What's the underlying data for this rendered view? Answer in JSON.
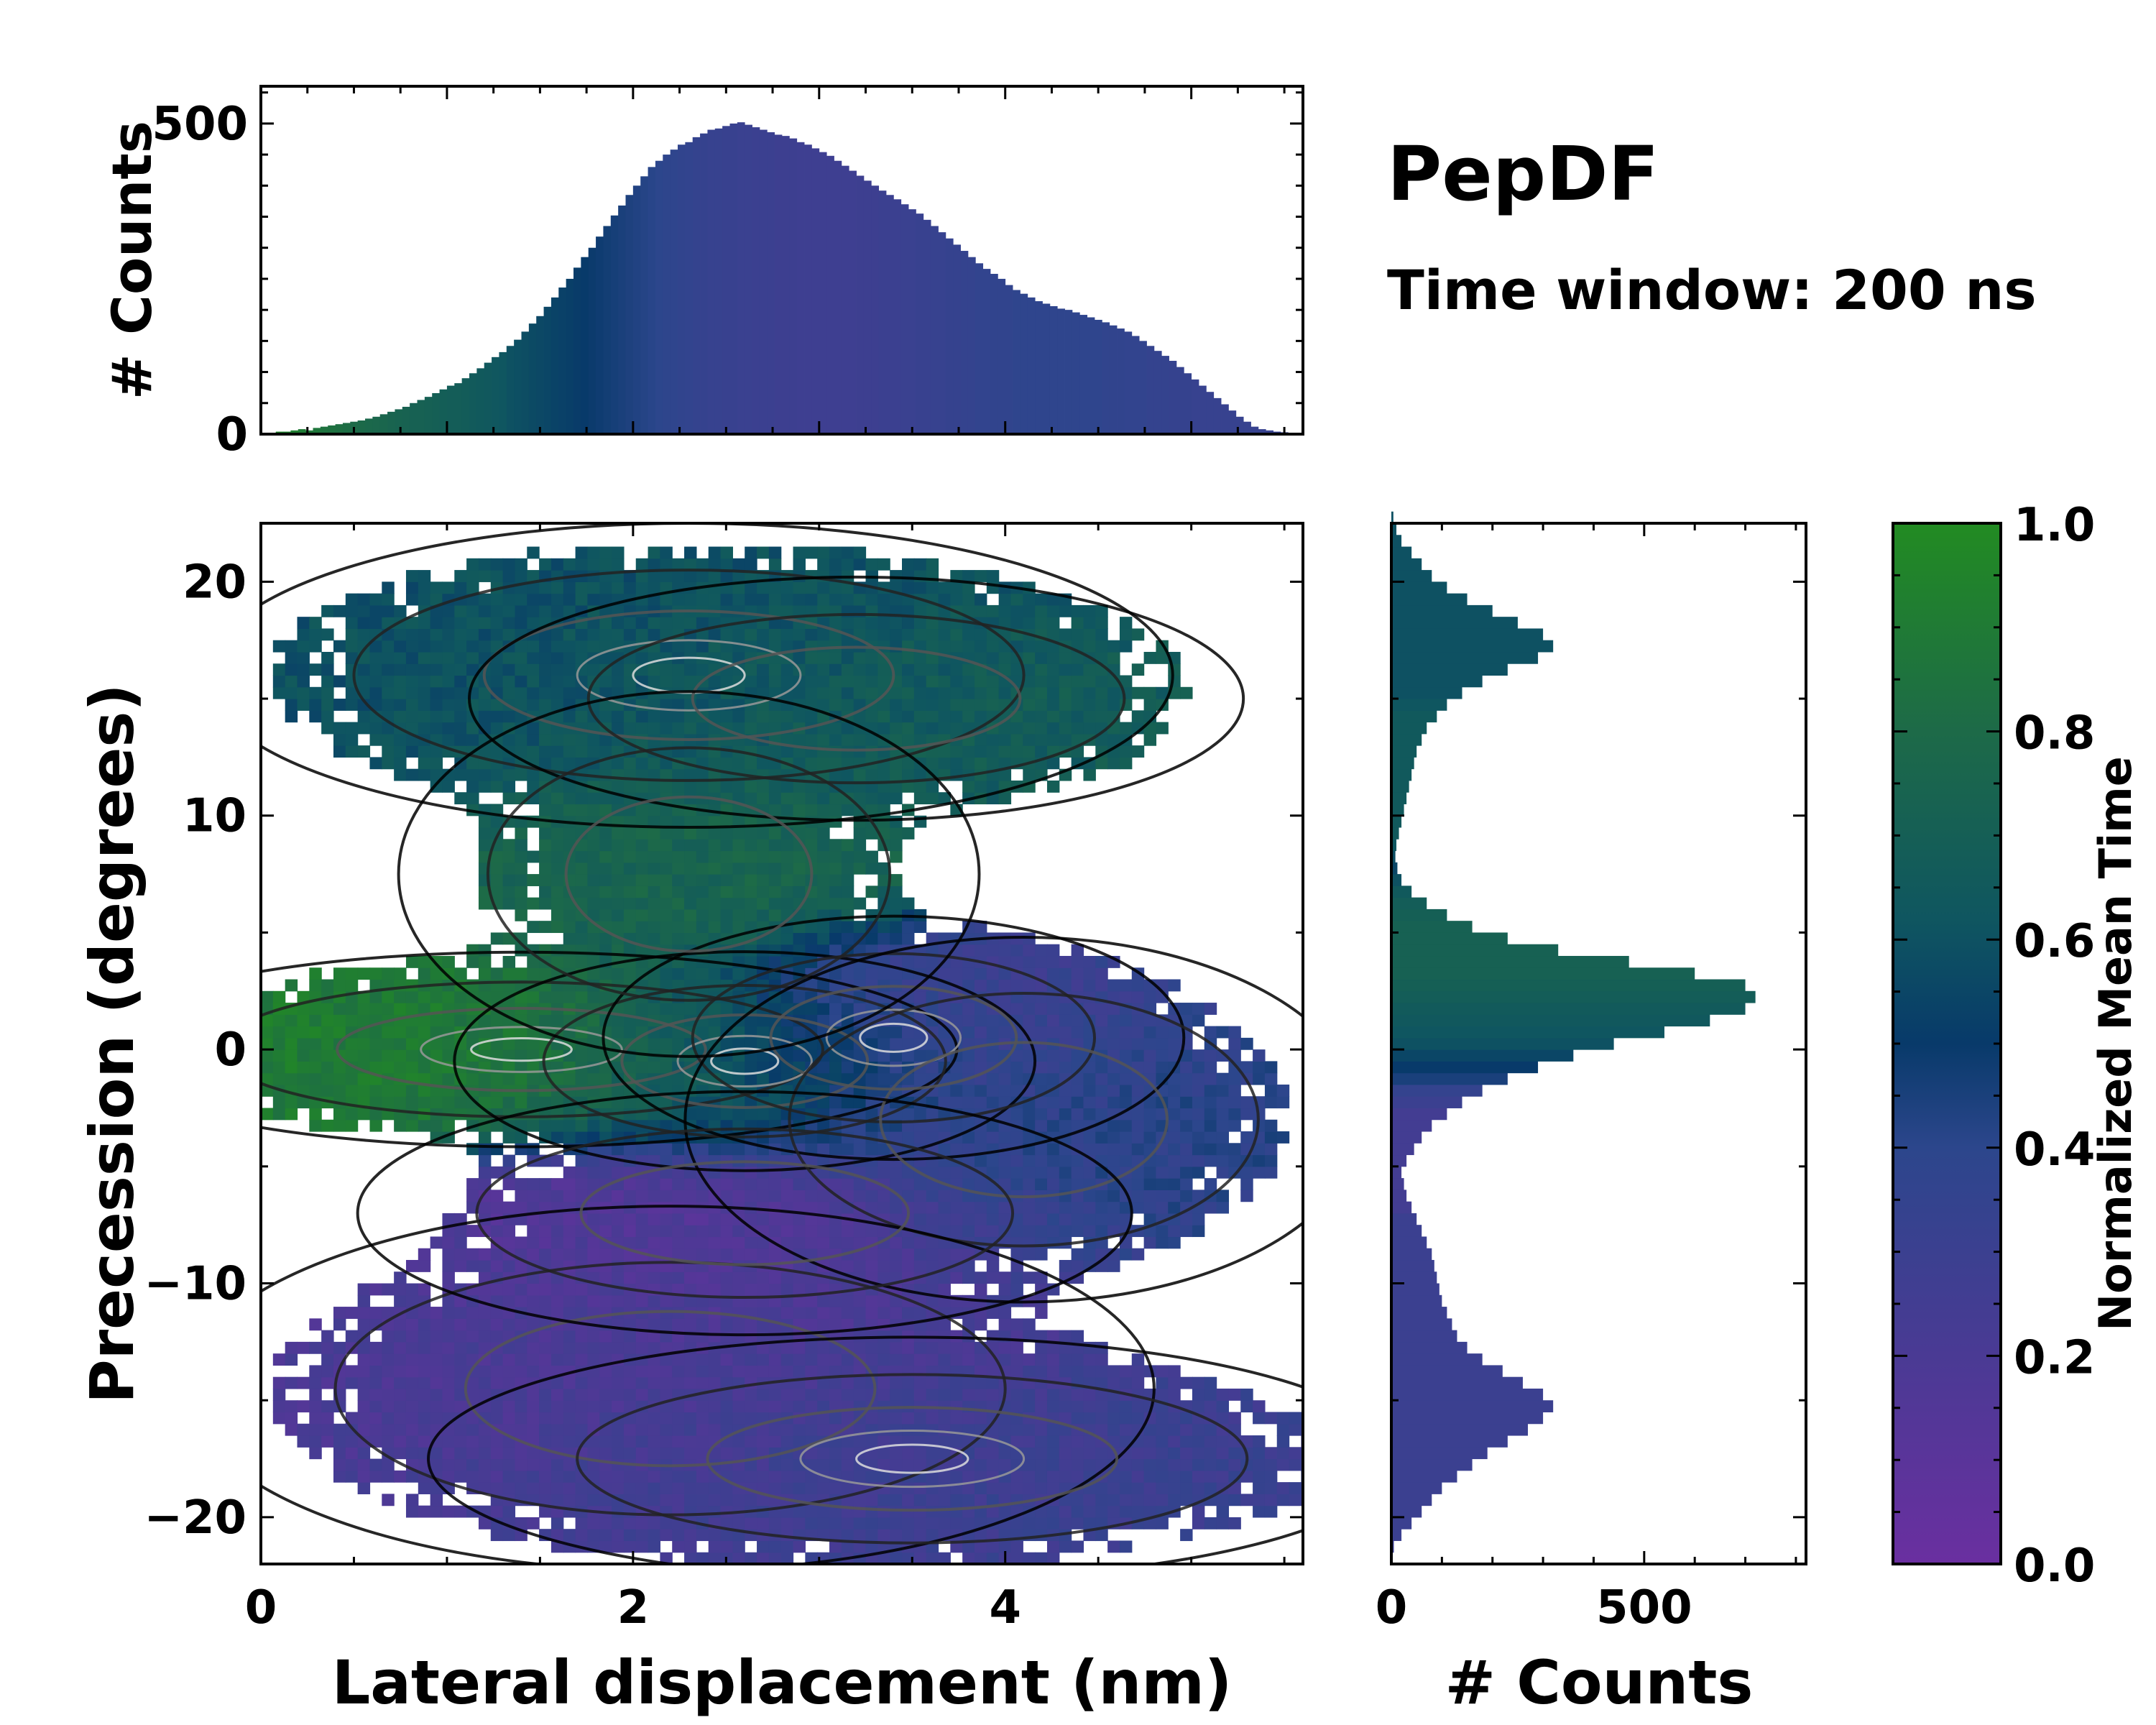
{
  "figure": {
    "title": "PepDF",
    "subtitle": "Time window: 200 ns"
  },
  "chart_data": [
    {
      "type": "bar",
      "name": "top-histogram",
      "xlabel": "",
      "ylabel": "# Counts",
      "xlim": [
        0,
        5.6
      ],
      "ylim": [
        0,
        560
      ],
      "yticks": [
        0,
        500
      ],
      "bin_width": 0.04,
      "values": [
        0,
        2,
        4,
        4,
        6,
        8,
        6,
        10,
        12,
        14,
        16,
        18,
        20,
        22,
        25,
        28,
        32,
        36,
        40,
        44,
        50,
        55,
        60,
        66,
        72,
        78,
        82,
        90,
        98,
        106,
        115,
        124,
        132,
        142,
        152,
        165,
        178,
        190,
        205,
        220,
        236,
        250,
        268,
        285,
        300,
        318,
        335,
        352,
        368,
        385,
        400,
        415,
        430,
        440,
        450,
        458,
        466,
        470,
        478,
        484,
        490,
        492,
        496,
        500,
        502,
        498,
        494,
        490,
        486,
        482,
        480,
        476,
        470,
        466,
        460,
        454,
        448,
        440,
        432,
        424,
        416,
        408,
        400,
        392,
        385,
        378,
        370,
        362,
        355,
        345,
        335,
        325,
        315,
        305,
        295,
        285,
        275,
        266,
        258,
        250,
        240,
        232,
        226,
        220,
        214,
        210,
        206,
        202,
        200,
        196,
        192,
        188,
        184,
        180,
        175,
        170,
        165,
        158,
        150,
        142,
        134,
        126,
        118,
        108,
        98,
        88,
        78,
        68,
        58,
        48,
        38,
        28,
        20,
        12,
        8,
        6,
        4,
        3,
        2,
        1
      ],
      "color_values": [
        0.98,
        0.96,
        0.95,
        0.93,
        0.92,
        0.9,
        0.88,
        0.87,
        0.85,
        0.84,
        0.83,
        0.82,
        0.8,
        0.79,
        0.78,
        0.77,
        0.76,
        0.75,
        0.74,
        0.73,
        0.72,
        0.72,
        0.71,
        0.7,
        0.69,
        0.68,
        0.68,
        0.67,
        0.66,
        0.65,
        0.64,
        0.63,
        0.62,
        0.6,
        0.59,
        0.58,
        0.57,
        0.56,
        0.55,
        0.54,
        0.53,
        0.52,
        0.51,
        0.5,
        0.49,
        0.48,
        0.47,
        0.46,
        0.45,
        0.44,
        0.43,
        0.42,
        0.41,
        0.4,
        0.39,
        0.38,
        0.37,
        0.36,
        0.35,
        0.34,
        0.33,
        0.33,
        0.32,
        0.32,
        0.31,
        0.31,
        0.3,
        0.3,
        0.3,
        0.29,
        0.29,
        0.29,
        0.28,
        0.28,
        0.28,
        0.28,
        0.28,
        0.28,
        0.28,
        0.28,
        0.29,
        0.29,
        0.29,
        0.3,
        0.3,
        0.3,
        0.31,
        0.31,
        0.32,
        0.32,
        0.33,
        0.33,
        0.34,
        0.34,
        0.35,
        0.35,
        0.36,
        0.36,
        0.37,
        0.37,
        0.37,
        0.38,
        0.38,
        0.38,
        0.38,
        0.38,
        0.38,
        0.38,
        0.38,
        0.38,
        0.38,
        0.38,
        0.38,
        0.37,
        0.37,
        0.37,
        0.36,
        0.36,
        0.36,
        0.35,
        0.35,
        0.35,
        0.34,
        0.34,
        0.34,
        0.33,
        0.33,
        0.33,
        0.33,
        0.33,
        0.33,
        0.33,
        0.33,
        0.33,
        0.33,
        0.33,
        0.33,
        0.33,
        0.33,
        0.33
      ]
    },
    {
      "type": "heatmap",
      "name": "main-2d-histogram",
      "xlabel": "Lateral displacement (nm)",
      "ylabel": "Precession (degrees)",
      "xlim": [
        0,
        5.6
      ],
      "ylim": [
        -22,
        22.5
      ],
      "xticks": [
        0,
        2,
        4
      ],
      "yticks": [
        -20,
        -10,
        0,
        10,
        20
      ],
      "contours": true,
      "clusters": [
        {
          "x": 1.4,
          "y": 0.0,
          "sx": 0.9,
          "sy": 1.6,
          "weight": 1.0,
          "time": 0.9
        },
        {
          "x": 2.6,
          "y": -0.5,
          "sx": 0.6,
          "sy": 1.8,
          "weight": 1.4,
          "time": 0.6
        },
        {
          "x": 3.4,
          "y": 0.5,
          "sx": 0.6,
          "sy": 2.0,
          "weight": 0.9,
          "time": 0.25
        },
        {
          "x": 4.1,
          "y": -3.0,
          "sx": 0.7,
          "sy": 3.0,
          "weight": 0.5,
          "time": 0.4
        },
        {
          "x": 2.3,
          "y": 16.0,
          "sx": 1.0,
          "sy": 2.5,
          "weight": 0.8,
          "time": 0.6
        },
        {
          "x": 3.2,
          "y": 15.0,
          "sx": 0.8,
          "sy": 2.0,
          "weight": 0.6,
          "time": 0.7
        },
        {
          "x": 2.3,
          "y": 7.5,
          "sx": 0.6,
          "sy": 3.0,
          "weight": 0.35,
          "time": 0.75
        },
        {
          "x": 2.2,
          "y": -14.5,
          "sx": 1.0,
          "sy": 3.0,
          "weight": 0.6,
          "time": 0.2
        },
        {
          "x": 3.5,
          "y": -17.5,
          "sx": 1.0,
          "sy": 2.0,
          "weight": 0.75,
          "time": 0.3
        },
        {
          "x": 2.6,
          "y": -7.0,
          "sx": 0.8,
          "sy": 2.0,
          "weight": 0.35,
          "time": 0.15
        }
      ]
    },
    {
      "type": "bar",
      "name": "right-histogram",
      "orientation": "horizontal",
      "xlabel": "# Counts",
      "ylabel": "",
      "xlim": [
        0,
        820
      ],
      "xticks": [
        0,
        500
      ],
      "ylim": [
        -22,
        22.5
      ],
      "bin_width": 0.5,
      "bin_start": -22,
      "values": [
        0,
        5,
        20,
        40,
        60,
        80,
        100,
        130,
        160,
        190,
        230,
        270,
        300,
        320,
        300,
        260,
        220,
        180,
        150,
        130,
        120,
        110,
        100,
        95,
        90,
        85,
        80,
        70,
        60,
        50,
        40,
        30,
        25,
        20,
        30,
        45,
        60,
        80,
        110,
        140,
        180,
        230,
        290,
        360,
        440,
        540,
        630,
        700,
        720,
        700,
        600,
        470,
        330,
        230,
        160,
        110,
        70,
        40,
        20,
        12,
        8,
        10,
        15,
        20,
        25,
        30,
        35,
        40,
        45,
        50,
        60,
        70,
        90,
        110,
        140,
        180,
        230,
        290,
        320,
        300,
        250,
        200,
        150,
        110,
        80,
        60,
        40,
        20,
        10,
        4
      ],
      "color_values": [
        0.3,
        0.3,
        0.3,
        0.3,
        0.3,
        0.3,
        0.3,
        0.3,
        0.3,
        0.3,
        0.3,
        0.3,
        0.3,
        0.3,
        0.3,
        0.3,
        0.3,
        0.3,
        0.3,
        0.3,
        0.3,
        0.3,
        0.3,
        0.3,
        0.3,
        0.3,
        0.3,
        0.3,
        0.3,
        0.3,
        0.25,
        0.25,
        0.25,
        0.25,
        0.25,
        0.25,
        0.25,
        0.25,
        0.25,
        0.3,
        0.35,
        0.45,
        0.5,
        0.55,
        0.6,
        0.62,
        0.64,
        0.66,
        0.68,
        0.7,
        0.72,
        0.72,
        0.72,
        0.72,
        0.72,
        0.7,
        0.68,
        0.65,
        0.6,
        0.55,
        0.58,
        0.62,
        0.65,
        0.65,
        0.65,
        0.65,
        0.65,
        0.65,
        0.65,
        0.65,
        0.65,
        0.65,
        0.65,
        0.62,
        0.6,
        0.6,
        0.6,
        0.6,
        0.6,
        0.6,
        0.6,
        0.6,
        0.6,
        0.6,
        0.6,
        0.6,
        0.6,
        0.6,
        0.6,
        0.6
      ]
    },
    {
      "type": "colorbar",
      "name": "colorbar",
      "label": "Normalized Mean Time",
      "range": [
        0,
        1
      ],
      "ticks": [
        "0.0",
        "0.2",
        "0.4",
        "0.6",
        "0.8",
        "1.0"
      ],
      "colormap": [
        "#6a2fa0",
        "#3b3f8f",
        "#2a4d8a",
        "#0f3e6e",
        "#1e6a5c",
        "#2b8a2a",
        "#228b22"
      ]
    }
  ]
}
